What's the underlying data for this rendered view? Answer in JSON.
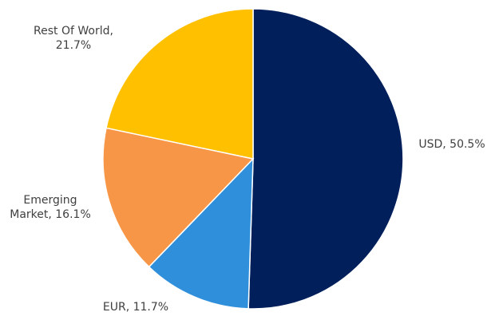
{
  "chart_data": {
    "type": "pie",
    "title": "",
    "slices": [
      {
        "label_lines": [
          "USD, 50.5%"
        ],
        "name": "USD",
        "value": 50.5,
        "color": "#001f5b"
      },
      {
        "label_lines": [
          "EUR, 11.7%"
        ],
        "name": "EUR",
        "value": 11.7,
        "color": "#2f8fdb"
      },
      {
        "label_lines": [
          "Emerging",
          "Market, 16.1%"
        ],
        "name": "Emerging Market",
        "value": 16.1,
        "color": "#f79646"
      },
      {
        "label_lines": [
          "Rest Of World,",
          "21.7%"
        ],
        "name": "Rest Of World",
        "value": 21.7,
        "color": "#ffc000"
      }
    ],
    "start_angle_deg": 0,
    "direction": "clockwise",
    "legend": "none",
    "data_labels": "outside"
  }
}
